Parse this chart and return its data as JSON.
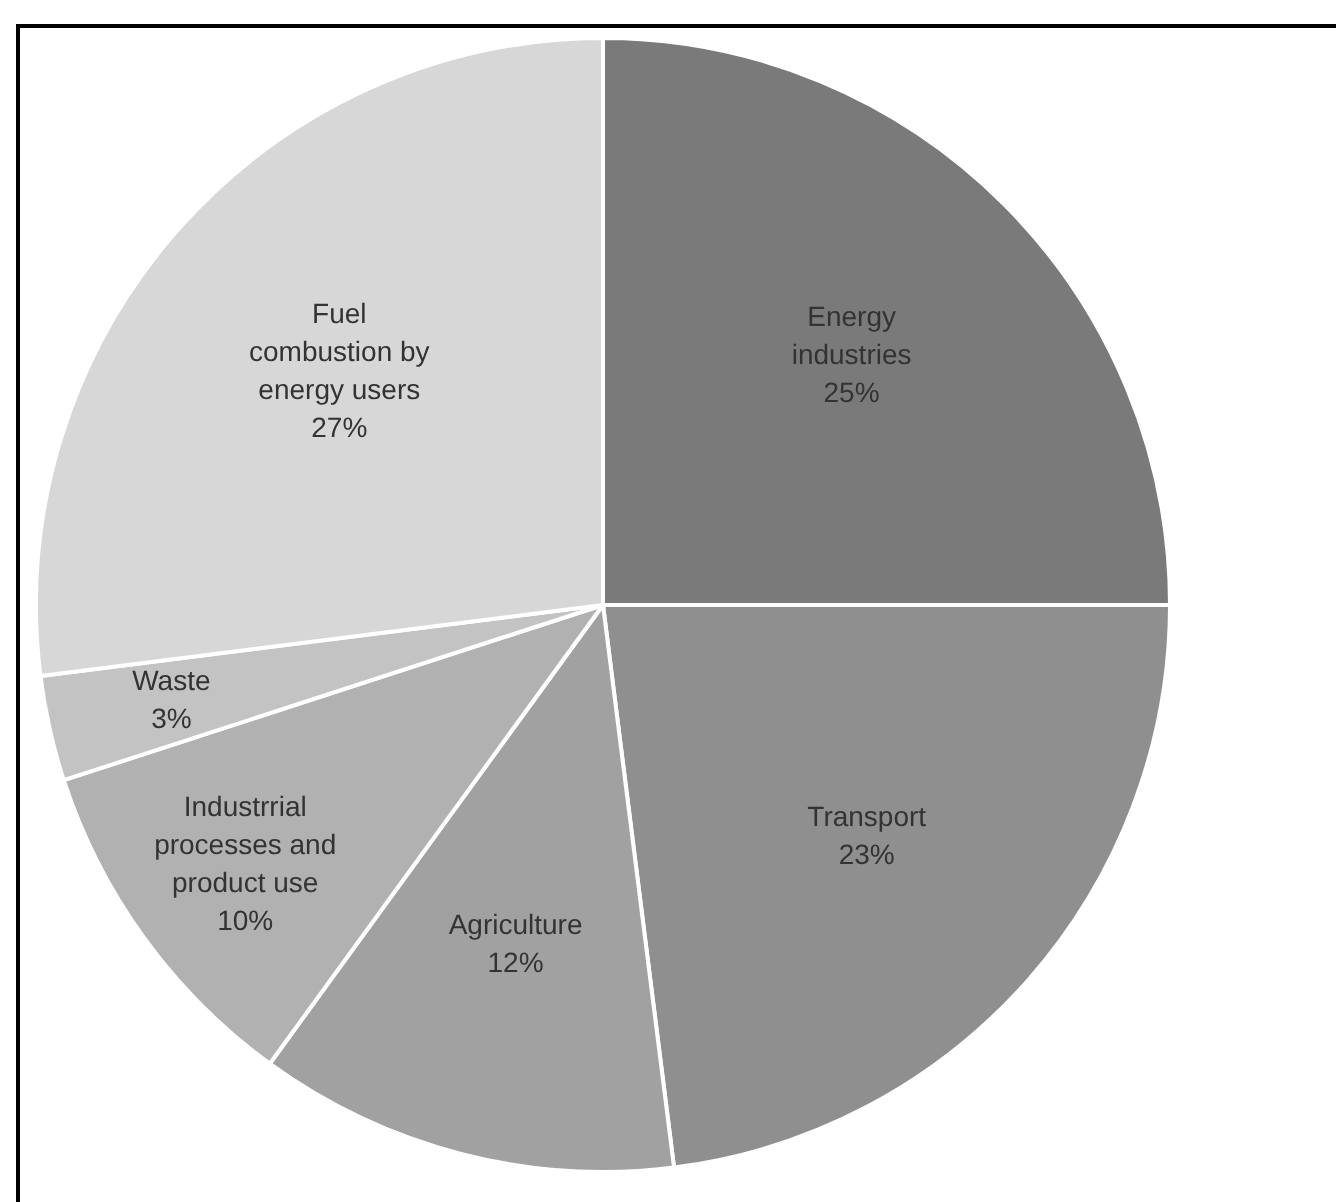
{
  "chart_data": {
    "type": "pie",
    "categories": [
      "Energy industries",
      "Transport",
      "Agriculture",
      "Industrrial processes and product use",
      "Waste",
      "Fuel combustion by energy users"
    ],
    "values": [
      25,
      23,
      12,
      10,
      3,
      27
    ],
    "value_labels": [
      "25%",
      "23%",
      "12%",
      "10%",
      "3%",
      "27%"
    ],
    "colors": [
      "#7a7a7a",
      "#8f8f8f",
      "#a1a1a1",
      "#b1b1b1",
      "#c3c3c3",
      "#d7d7d7"
    ],
    "legend": false
  }
}
